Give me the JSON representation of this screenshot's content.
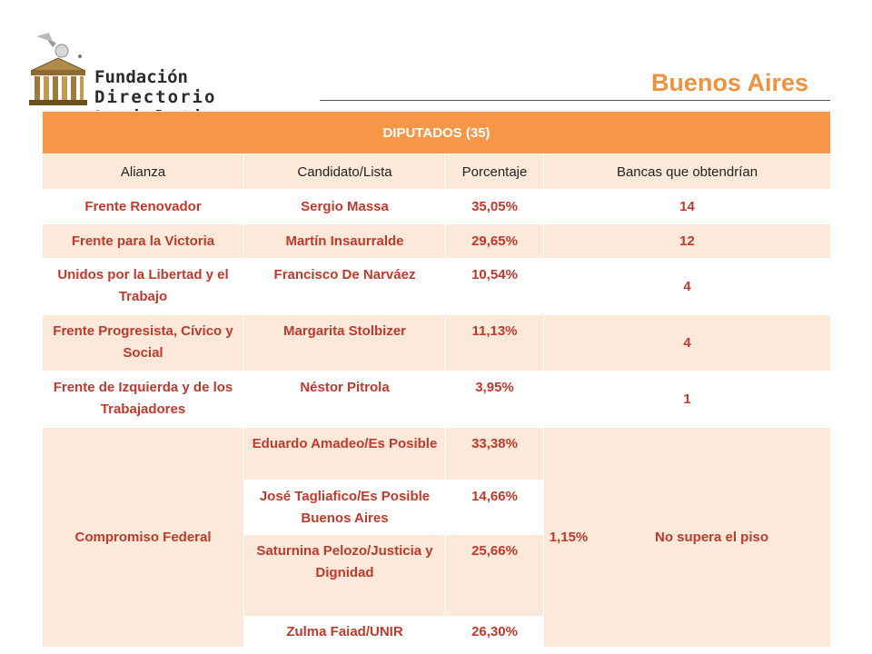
{
  "header": {
    "logo_line1": "Fundación",
    "logo_line2": "Directorio Legislativo",
    "title": "Buenos Aires"
  },
  "table": {
    "title": "DIPUTADOS (35)",
    "columns": [
      "Alianza",
      "Candidato/Lista",
      "Porcentaje",
      "Bancas que obtendrían"
    ],
    "rows": [
      {
        "alianza": "Frente Renovador",
        "candidato": "Sergio Massa",
        "porcentaje": "35,05%",
        "bancas": "14"
      },
      {
        "alianza": "Frente para la Victoria",
        "candidato": "Martín Insaurralde",
        "porcentaje": "29,65%",
        "bancas": "12"
      },
      {
        "alianza": "Unidos por la Libertad y el Trabajo",
        "candidato": "Francisco De Narváez",
        "porcentaje": "10,54%",
        "bancas": "4"
      },
      {
        "alianza": "Frente Progresista, Cívico y Social",
        "candidato": "Margarita Stolbizer",
        "porcentaje": "11,13%",
        "bancas": "4"
      },
      {
        "alianza": "Frente de Izquierda y de los Trabajadores",
        "candidato": "Néstor Pitrola",
        "porcentaje": "3,95%",
        "bancas": "1"
      }
    ],
    "compromiso": {
      "alianza": "Compromiso Federal",
      "total": "1,15%",
      "bancas": "No supera el piso",
      "sublists": [
        {
          "candidato": "Eduardo Amadeo/Es Posible",
          "porcentaje": "33,38%"
        },
        {
          "candidato": "José Tagliafico/Es Posible Buenos Aires",
          "porcentaje": "14,66%"
        },
        {
          "candidato": "Saturnina Pelozo/Justicia y Dignidad",
          "porcentaje": "25,66%"
        },
        {
          "candidato": "Zulma Faiad/UNIR",
          "porcentaje": "26,30%"
        }
      ]
    }
  }
}
